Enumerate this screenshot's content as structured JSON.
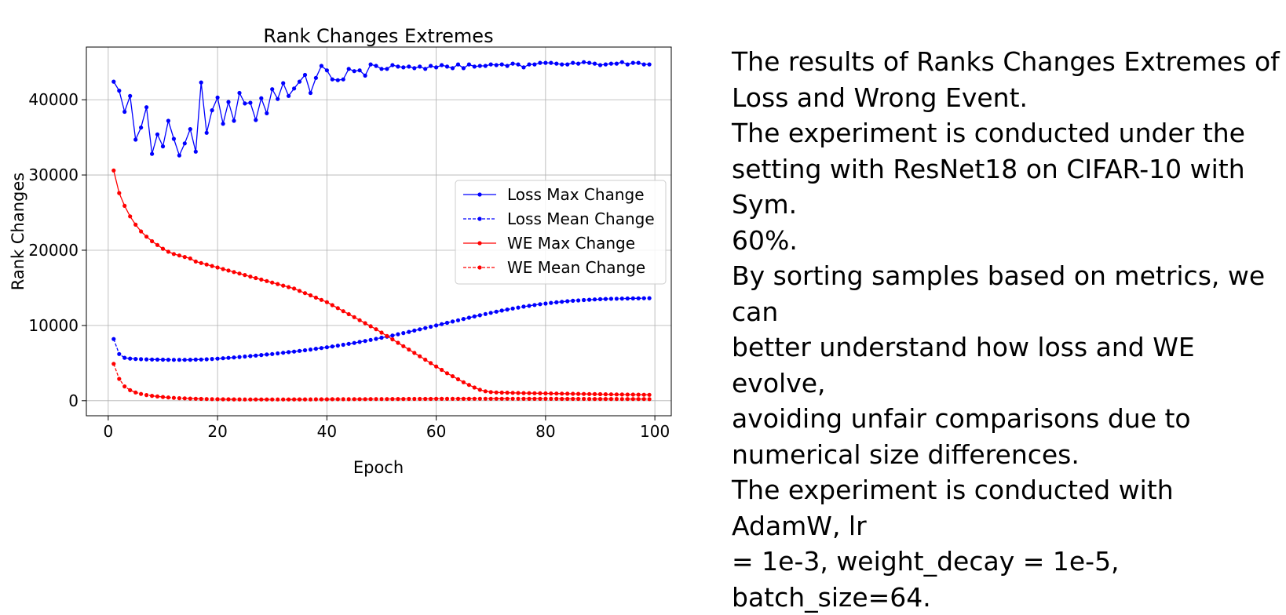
{
  "chart_data": {
    "type": "line",
    "title": "Rank Changes Extremes",
    "xlabel": "Epoch",
    "ylabel": "Rank Changes",
    "xlim": [
      -4,
      103
    ],
    "ylim": [
      -2000,
      47000
    ],
    "xticks": [
      0,
      20,
      40,
      60,
      80,
      100
    ],
    "yticks": [
      0,
      10000,
      20000,
      30000,
      40000
    ],
    "grid": true,
    "legend_position": "center-right",
    "x_start": 1,
    "x_end": 99,
    "series": [
      {
        "name": "Loss Max Change",
        "color": "#0000ff",
        "linestyle": "solid",
        "values": [
          42400,
          41200,
          38400,
          40500,
          34700,
          36300,
          39000,
          32800,
          35400,
          33800,
          37200,
          34800,
          32600,
          34200,
          36100,
          33100,
          42300,
          35600,
          38600,
          40300,
          36800,
          39700,
          37200,
          40900,
          39500,
          39600,
          37300,
          40200,
          38200,
          41400,
          40100,
          42200,
          40500,
          41500,
          42400,
          43300,
          40900,
          42900,
          44500,
          43900,
          42700,
          42600,
          42700,
          44100,
          43800,
          43900,
          43200,
          44700,
          44500,
          44100,
          44100,
          44600,
          44400,
          44300,
          44400,
          44200,
          44400,
          44100,
          44500,
          44300,
          44600,
          44400,
          44200,
          44700,
          44200,
          44700,
          44400,
          44500,
          44500,
          44700,
          44600,
          44700,
          44500,
          44800,
          44700,
          44300,
          44700,
          44700,
          44900,
          44900,
          44900,
          44800,
          44700,
          44700,
          44900,
          44800,
          45000,
          44900,
          44800,
          44600,
          44700,
          44800,
          44800,
          45000,
          44700,
          44900,
          44900,
          44700,
          44700
        ]
      },
      {
        "name": "Loss Mean Change",
        "color": "#0000ff",
        "linestyle": "dashed",
        "values": [
          8200,
          6200,
          5700,
          5600,
          5550,
          5520,
          5500,
          5480,
          5460,
          5450,
          5440,
          5430,
          5430,
          5430,
          5440,
          5460,
          5480,
          5510,
          5550,
          5590,
          5640,
          5690,
          5750,
          5810,
          5870,
          5930,
          6000,
          6070,
          6140,
          6210,
          6290,
          6370,
          6450,
          6530,
          6620,
          6710,
          6800,
          6900,
          7000,
          7100,
          7210,
          7320,
          7440,
          7560,
          7680,
          7810,
          7940,
          8080,
          8220,
          8370,
          8520,
          8670,
          8830,
          8990,
          9150,
          9320,
          9490,
          9660,
          9830,
          10000,
          10180,
          10350,
          10520,
          10690,
          10860,
          11030,
          11200,
          11360,
          11520,
          11680,
          11830,
          11980,
          12120,
          12250,
          12380,
          12500,
          12610,
          12720,
          12820,
          12910,
          13000,
          13080,
          13150,
          13220,
          13280,
          13330,
          13380,
          13420,
          13460,
          13490,
          13520,
          13540,
          13560,
          13580,
          13590,
          13600,
          13610,
          13620,
          13630
        ]
      },
      {
        "name": "WE Max Change",
        "color": "#ff0000",
        "linestyle": "solid",
        "values": [
          30600,
          27600,
          25900,
          24500,
          23400,
          22500,
          21800,
          21200,
          20700,
          20200,
          19800,
          19500,
          19300,
          19100,
          18900,
          18500,
          18300,
          18100,
          17900,
          17700,
          17500,
          17300,
          17100,
          16900,
          16700,
          16500,
          16300,
          16100,
          15900,
          15700,
          15500,
          15300,
          15100,
          14900,
          14600,
          14300,
          14000,
          13700,
          13400,
          13100,
          12700,
          12300,
          11900,
          11500,
          11100,
          10700,
          10300,
          9900,
          9500,
          9050,
          8600,
          8150,
          7700,
          7250,
          6800,
          6350,
          5900,
          5450,
          5000,
          4550,
          4100,
          3650,
          3250,
          2850,
          2450,
          2100,
          1750,
          1450,
          1250,
          1150,
          1100,
          1080,
          1060,
          1040,
          1020,
          1010,
          1000,
          990,
          980,
          970,
          960,
          950,
          940,
          930,
          920,
          910,
          900,
          890,
          880,
          870,
          860,
          850,
          840,
          830,
          820,
          810,
          800,
          790,
          780
        ]
      },
      {
        "name": "WE Mean Change",
        "color": "#ff0000",
        "linestyle": "dashed",
        "values": [
          4900,
          2900,
          1900,
          1400,
          1100,
          900,
          750,
          650,
          560,
          490,
          430,
          380,
          340,
          310,
          280,
          260,
          240,
          225,
          210,
          200,
          190,
          185,
          180,
          175,
          170,
          168,
          166,
          165,
          165,
          166,
          168,
          170,
          172,
          175,
          178,
          180,
          183,
          186,
          189,
          192,
          195,
          198,
          201,
          204,
          207,
          210,
          213,
          216,
          219,
          222,
          225,
          228,
          231,
          234,
          237,
          240,
          242,
          244,
          246,
          248,
          250,
          252,
          254,
          255,
          256,
          257,
          258,
          259,
          260,
          260,
          260,
          260,
          260,
          259,
          258,
          257,
          256,
          255,
          254,
          252,
          250,
          248,
          246,
          244,
          242,
          240,
          238,
          236,
          234,
          232,
          230,
          228,
          226,
          224,
          222,
          220,
          218,
          216,
          214
        ]
      }
    ]
  },
  "description": {
    "lines": [
      "The results of Ranks Changes Extremes of",
      "Loss and Wrong Event.",
      "The experiment is conducted under the",
      "setting with ResNet18 on CIFAR-10 with Sym.",
      "60%.",
      "By sorting samples based on metrics, we can",
      "better understand how loss and WE evolve,",
      "avoiding unfair comparisons due to",
      "numerical size differences.",
      "The experiment is conducted with AdamW, lr",
      "= 1e-3, weight_decay = 1e-5, batch_size=64."
    ]
  }
}
